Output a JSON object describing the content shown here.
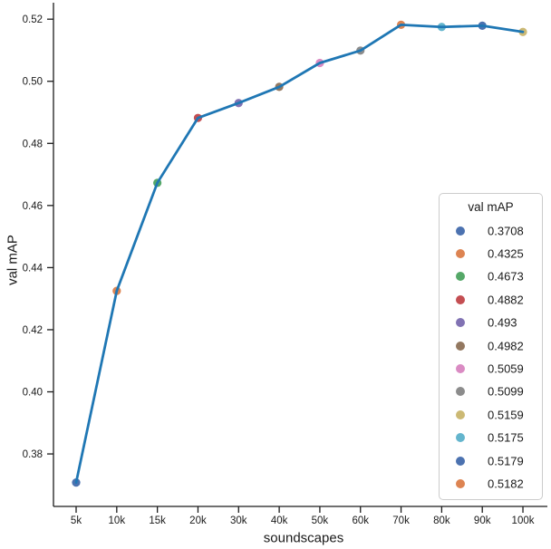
{
  "figure": {
    "background": "#ffffff",
    "text_color": "#1a1a1a",
    "spine_color": "#1b1b1b"
  },
  "chart_data": {
    "type": "line",
    "title": "",
    "xlabel": "soundscapes",
    "ylabel": "val mAP",
    "categories": [
      "5k",
      "10k",
      "15k",
      "20k",
      "30k",
      "40k",
      "50k",
      "60k",
      "70k",
      "80k",
      "90k",
      "100k"
    ],
    "values": [
      0.3708,
      0.4325,
      0.4673,
      0.4882,
      0.493,
      0.4982,
      0.5059,
      0.5099,
      0.5182,
      0.5175,
      0.5179,
      0.5159
    ],
    "point_colors": [
      "#4C72B0",
      "#DD8452",
      "#55A868",
      "#C44E52",
      "#8172B3",
      "#937860",
      "#DA8BC3",
      "#8C8C8C",
      "#DD8452",
      "#64B5CD",
      "#4C72B0",
      "#CCB974"
    ],
    "line_color": "#1F77B4",
    "ylim": [
      0.3631,
      0.5253
    ],
    "yticks": [
      "0.38",
      "0.40",
      "0.42",
      "0.44",
      "0.46",
      "0.48",
      "0.50",
      "0.52"
    ],
    "grid": false,
    "legend": {
      "title": "val mAP",
      "position": "right-middle",
      "entries": [
        {
          "label": "0.3708",
          "color": "#4C72B0"
        },
        {
          "label": "0.4325",
          "color": "#DD8452"
        },
        {
          "label": "0.4673",
          "color": "#55A868"
        },
        {
          "label": "0.4882",
          "color": "#C44E52"
        },
        {
          "label": "0.493",
          "color": "#8172B3"
        },
        {
          "label": "0.4982",
          "color": "#937860"
        },
        {
          "label": "0.5059",
          "color": "#DA8BC3"
        },
        {
          "label": "0.5099",
          "color": "#8C8C8C"
        },
        {
          "label": "0.5159",
          "color": "#CCB974"
        },
        {
          "label": "0.5175",
          "color": "#64B5CD"
        },
        {
          "label": "0.5179",
          "color": "#4C72B0"
        },
        {
          "label": "0.5182",
          "color": "#DD8452"
        }
      ]
    }
  }
}
